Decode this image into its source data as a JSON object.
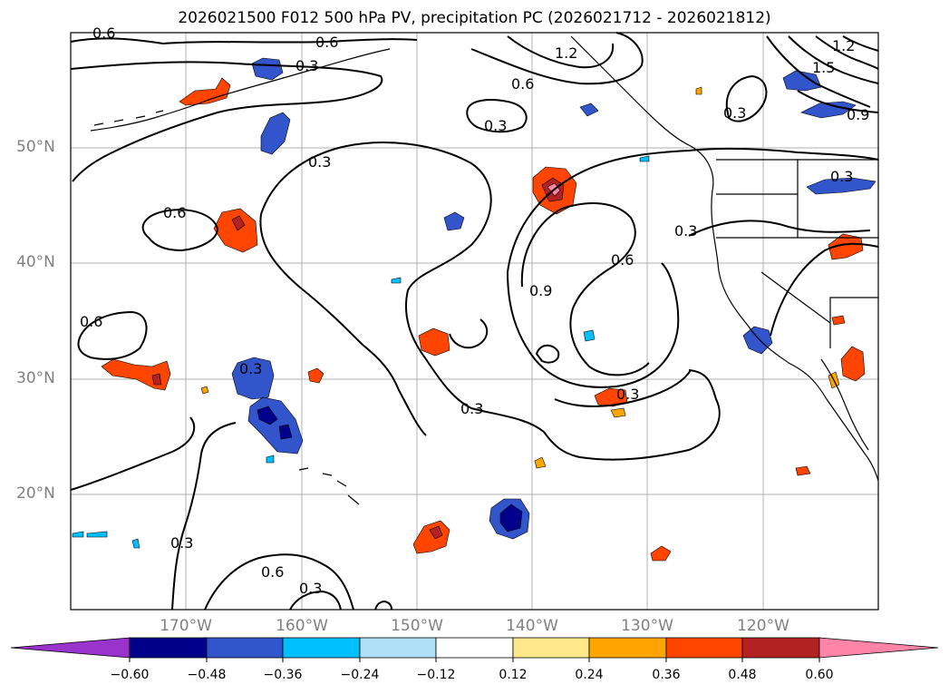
{
  "title": "2026021500 F012 500 hPa PV, precipitation PC (2026021712 - 2026021812)",
  "lat_labels": [
    {
      "text": "50°N",
      "value": 50
    },
    {
      "text": "40°N",
      "value": 40
    },
    {
      "text": "30°N",
      "value": 30
    },
    {
      "text": "20°N",
      "value": 20
    }
  ],
  "lon_labels": [
    {
      "text": "170°W",
      "value": -170
    },
    {
      "text": "160°W",
      "value": -160
    },
    {
      "text": "150°W",
      "value": -150
    },
    {
      "text": "140°W",
      "value": -140
    },
    {
      "text": "130°W",
      "value": -130
    },
    {
      "text": "120°W",
      "value": -120
    }
  ],
  "contour_labels": [
    "0.6",
    "0.6",
    "0.3",
    "1.2",
    "0.6",
    "0.3",
    "1.2",
    "1.5",
    "0.9",
    "0.3",
    "0.3",
    "0.3",
    "0.6",
    "0.3",
    "0.6",
    "0.9",
    "0.6",
    "0.3",
    "0.3",
    "0.3",
    "0.3",
    "0.6",
    "0.3"
  ],
  "colorbar": {
    "ticks": [
      "−0.60",
      "−0.48",
      "−0.36",
      "−0.24",
      "−0.12",
      "0.12",
      "0.24",
      "0.36",
      "0.48",
      "0.60"
    ],
    "colors": [
      "#9933cc",
      "#00008b",
      "#3355cc",
      "#00bfff",
      "#b0e0f8",
      "#ffffff",
      "#ffe88a",
      "#ffa500",
      "#ff4500",
      "#b22222",
      "#ff85a8"
    ]
  }
}
